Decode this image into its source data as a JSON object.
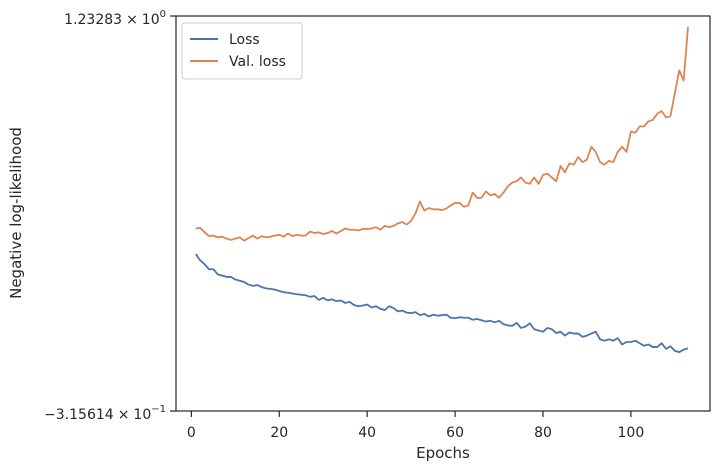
{
  "chart_data": {
    "type": "line",
    "xlabel": "Epochs",
    "ylabel": "Negative log-likelihood",
    "xlim": [
      -3.5,
      118
    ],
    "ylim": [
      -0.315614,
      1.23283
    ],
    "x_ticks": [
      0,
      20,
      40,
      60,
      80,
      100
    ],
    "x_tick_labels": [
      "0",
      "20",
      "40",
      "60",
      "80",
      "100"
    ],
    "y_tick_labels": {
      "top": {
        "base": "1.23283",
        "times": "×",
        "power": "10",
        "exp": "0"
      },
      "bottom": {
        "base": "−3.15614",
        "times": "×",
        "power": "10",
        "exp": "−1"
      }
    },
    "grid": false,
    "legend_position": "upper-left",
    "series": [
      {
        "name": "Loss",
        "color": "#4c72b0",
        "x": [
          1,
          2,
          3,
          4,
          5,
          6,
          7,
          8,
          9,
          10,
          11,
          12,
          13,
          14,
          15,
          16,
          17,
          18,
          19,
          20,
          21,
          22,
          23,
          24,
          25,
          26,
          27,
          28,
          29,
          30,
          31,
          32,
          33,
          34,
          35,
          36,
          37,
          38,
          39,
          40,
          41,
          42,
          43,
          44,
          45,
          46,
          47,
          48,
          49,
          50,
          51,
          52,
          53,
          54,
          55,
          56,
          57,
          58,
          59,
          60,
          61,
          62,
          63,
          64,
          65,
          66,
          67,
          68,
          69,
          70,
          71,
          72,
          73,
          74,
          75,
          76,
          77,
          78,
          79,
          80,
          81,
          82,
          83,
          84,
          85,
          86,
          87,
          88,
          89,
          90,
          91,
          92,
          93,
          94,
          95,
          96,
          97,
          98,
          99,
          100,
          101,
          102,
          103,
          104,
          105,
          106,
          107,
          108,
          109,
          110,
          111,
          112,
          113
        ],
        "values": [
          0.3,
          0.275,
          0.26,
          0.24,
          0.24,
          0.22,
          0.215,
          0.21,
          0.21,
          0.2,
          0.195,
          0.19,
          0.18,
          0.175,
          0.178,
          0.17,
          0.165,
          0.163,
          0.16,
          0.155,
          0.15,
          0.148,
          0.145,
          0.142,
          0.14,
          0.138,
          0.132,
          0.135,
          0.12,
          0.128,
          0.118,
          0.122,
          0.115,
          0.118,
          0.108,
          0.112,
          0.1,
          0.095,
          0.098,
          0.102,
          0.09,
          0.095,
          0.085,
          0.08,
          0.095,
          0.088,
          0.075,
          0.078,
          0.07,
          0.068,
          0.072,
          0.06,
          0.065,
          0.055,
          0.062,
          0.058,
          0.06,
          0.062,
          0.05,
          0.048,
          0.052,
          0.05,
          0.05,
          0.042,
          0.045,
          0.04,
          0.035,
          0.038,
          0.032,
          0.038,
          0.025,
          0.02,
          0.018,
          0.03,
          0.01,
          0.015,
          0.028,
          0.005,
          0.0,
          -0.005,
          0.01,
          0.005,
          -0.01,
          -0.005,
          -0.02,
          -0.008,
          -0.012,
          -0.012,
          -0.025,
          -0.02,
          -0.012,
          -0.005,
          -0.035,
          -0.04,
          -0.035,
          -0.04,
          -0.03,
          -0.055,
          -0.045,
          -0.045,
          -0.04,
          -0.05,
          -0.06,
          -0.055,
          -0.065,
          -0.065,
          -0.05,
          -0.072,
          -0.062,
          -0.08,
          -0.085,
          -0.075,
          -0.07
        ]
      },
      {
        "name": "Val. loss",
        "color": "#dd8452",
        "x": [
          1,
          2,
          3,
          4,
          5,
          6,
          7,
          8,
          9,
          10,
          11,
          12,
          13,
          14,
          15,
          16,
          17,
          18,
          19,
          20,
          21,
          22,
          23,
          24,
          25,
          26,
          27,
          28,
          29,
          30,
          31,
          32,
          33,
          34,
          35,
          36,
          37,
          38,
          39,
          40,
          41,
          42,
          43,
          44,
          45,
          46,
          47,
          48,
          49,
          50,
          51,
          52,
          53,
          54,
          55,
          56,
          57,
          58,
          59,
          60,
          61,
          62,
          63,
          64,
          65,
          66,
          67,
          68,
          69,
          70,
          71,
          72,
          73,
          74,
          75,
          76,
          77,
          78,
          79,
          80,
          81,
          82,
          83,
          84,
          85,
          86,
          87,
          88,
          89,
          90,
          91,
          92,
          93,
          94,
          95,
          96,
          97,
          98,
          99,
          100,
          101,
          102,
          103,
          104,
          105,
          106,
          107,
          108,
          109,
          110,
          111,
          112,
          113
        ],
        "values": [
          0.4,
          0.402,
          0.385,
          0.37,
          0.372,
          0.365,
          0.368,
          0.36,
          0.355,
          0.36,
          0.365,
          0.352,
          0.362,
          0.372,
          0.36,
          0.37,
          0.365,
          0.368,
          0.372,
          0.375,
          0.368,
          0.38,
          0.37,
          0.375,
          0.372,
          0.372,
          0.388,
          0.382,
          0.385,
          0.378,
          0.382,
          0.39,
          0.38,
          0.39,
          0.4,
          0.395,
          0.395,
          0.392,
          0.398,
          0.398,
          0.4,
          0.405,
          0.395,
          0.41,
          0.405,
          0.41,
          0.42,
          0.425,
          0.415,
          0.43,
          0.46,
          0.505,
          0.47,
          0.48,
          0.475,
          0.475,
          0.472,
          0.478,
          0.49,
          0.5,
          0.5,
          0.485,
          0.49,
          0.54,
          0.52,
          0.52,
          0.545,
          0.53,
          0.535,
          0.52,
          0.54,
          0.565,
          0.58,
          0.585,
          0.6,
          0.58,
          0.575,
          0.6,
          0.575,
          0.61,
          0.615,
          0.6,
          0.585,
          0.645,
          0.62,
          0.655,
          0.65,
          0.68,
          0.66,
          0.67,
          0.72,
          0.7,
          0.66,
          0.65,
          0.665,
          0.66,
          0.7,
          0.72,
          0.7,
          0.78,
          0.775,
          0.8,
          0.8,
          0.82,
          0.825,
          0.85,
          0.86,
          0.835,
          0.84,
          0.93,
          1.02,
          0.98,
          1.19
        ]
      }
    ]
  }
}
